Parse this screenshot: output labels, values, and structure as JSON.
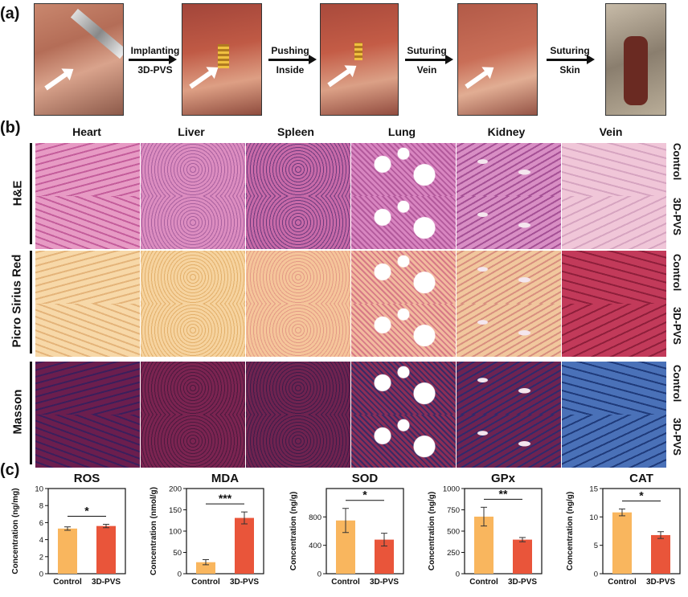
{
  "panel_labels": {
    "a": "(a)",
    "b": "(b)",
    "c": "(c)"
  },
  "surgery": {
    "steps": [
      {
        "line1": "Implanting",
        "line2": "3D-PVS"
      },
      {
        "line1": "Pushing",
        "line2": "Inside"
      },
      {
        "line1": "Suturing",
        "line2": "Vein"
      },
      {
        "line1": "Suturing",
        "line2": "Skin"
      }
    ]
  },
  "histology": {
    "columns": [
      "Heart",
      "Liver",
      "Spleen",
      "Lung",
      "Kidney",
      "Vein"
    ],
    "stains": [
      {
        "name": "H&E",
        "rows": [
          "Control",
          "3D-PVS"
        ],
        "colors": [
          "#e79ac4",
          "#dc8dc0",
          "#c76aa8",
          "#d885c0",
          "#d88ec4",
          "#f0c6d8"
        ],
        "dark": [
          "#c45d9b",
          "#a9619f",
          "#6d3b7e",
          "#b35a9c",
          "#a55095",
          "#d6a4c0"
        ]
      },
      {
        "name": "Picro Sirius Red",
        "rows": [
          "Control",
          "3D-PVS"
        ],
        "colors": [
          "#f7d8a8",
          "#f6d39f",
          "#f5c59a",
          "#f2b99e",
          "#f1c79d",
          "#c23a5a"
        ],
        "dark": [
          "#e4b47a",
          "#e3b06b",
          "#e49a86",
          "#d77a86",
          "#d88f7f",
          "#8e1f3b"
        ]
      },
      {
        "name": "Masson",
        "rows": [
          "Control",
          "3D-PVS"
        ],
        "colors": [
          "#6b1e4e",
          "#7b2451",
          "#6f2350",
          "#8a2e57",
          "#6d2352",
          "#4a71b8"
        ],
        "dark": [
          "#3b1f5c",
          "#4c1a3f",
          "#3e1c4a",
          "#3a2a66",
          "#2f2a6c",
          "#1f3a7a"
        ]
      }
    ]
  },
  "charts_meta": {
    "bar_colors": {
      "control": "#f9b65e",
      "treated": "#e9553a"
    },
    "ylabel_text_color": "#111111"
  },
  "chart_data": [
    {
      "type": "bar",
      "title": "ROS",
      "ylabel": "Concentration (ng/mg)",
      "categories": [
        "Control",
        "3D-PVS"
      ],
      "values": [
        5.3,
        5.6
      ],
      "errors": [
        0.2,
        0.2
      ],
      "ylim": [
        0,
        10
      ],
      "yticks": [
        0,
        2,
        4,
        6,
        8,
        10
      ],
      "significance": "*"
    },
    {
      "type": "bar",
      "title": "MDA",
      "ylabel": "Concentration (nmol/g)",
      "categories": [
        "Control",
        "3D-PVS"
      ],
      "values": [
        27,
        131
      ],
      "errors": [
        6,
        14
      ],
      "ylim": [
        0,
        200
      ],
      "yticks": [
        0,
        50,
        100,
        150,
        200
      ],
      "significance": "***"
    },
    {
      "type": "bar",
      "title": "SOD",
      "ylabel": "Concentration (ng/g)",
      "categories": [
        "Control",
        "3D-PVS"
      ],
      "values": [
        750,
        480
      ],
      "errors": [
        170,
        90
      ],
      "ylim": [
        0,
        1200
      ],
      "yticks": [
        0,
        400,
        800
      ],
      "significance": "*"
    },
    {
      "type": "bar",
      "title": "GPx",
      "ylabel": "Concentration (ng/g)",
      "categories": [
        "Control",
        "3D-PVS"
      ],
      "values": [
        670,
        400
      ],
      "errors": [
        110,
        25
      ],
      "ylim": [
        0,
        1000
      ],
      "yticks": [
        0,
        250,
        500,
        750,
        1000
      ],
      "significance": "**"
    },
    {
      "type": "bar",
      "title": "CAT",
      "ylabel": "Concentration (ng/g)",
      "categories": [
        "Control",
        "3D-PVS"
      ],
      "values": [
        10.8,
        6.8
      ],
      "errors": [
        0.6,
        0.6
      ],
      "ylim": [
        0,
        15
      ],
      "yticks": [
        0,
        5,
        10,
        15
      ],
      "significance": "*"
    }
  ]
}
